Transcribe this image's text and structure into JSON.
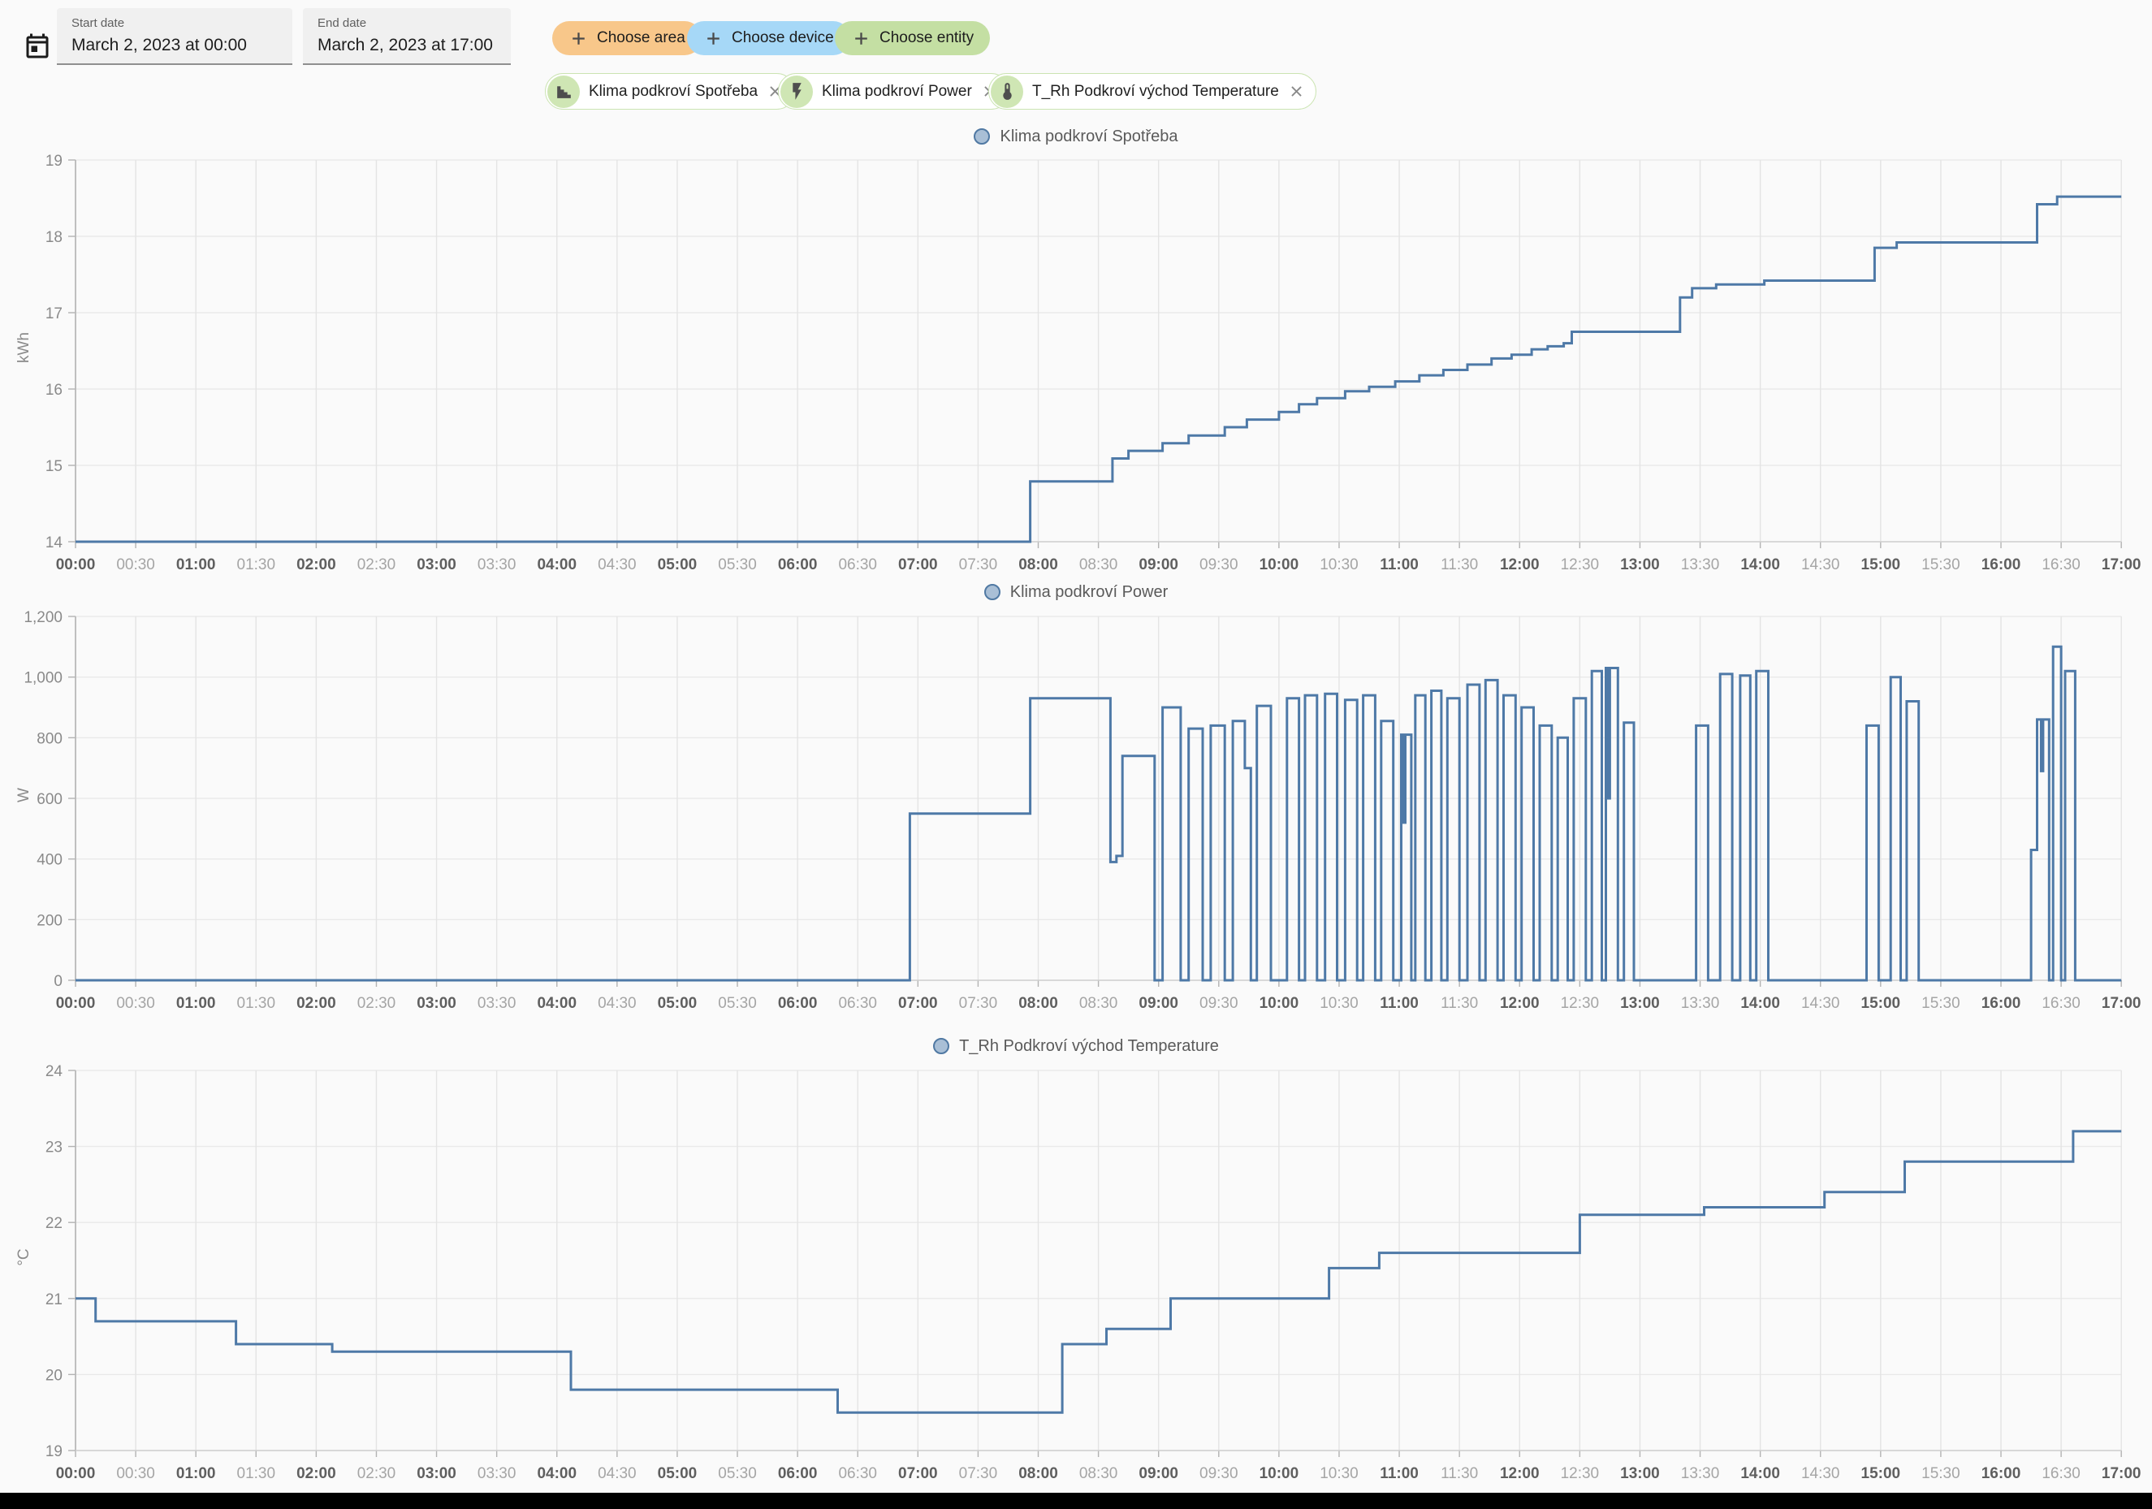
{
  "toolbar": {
    "start_date": {
      "label": "Start date",
      "value": "March 2, 2023 at 00:00"
    },
    "end_date": {
      "label": "End date",
      "value": "March 2, 2023 at 17:00"
    },
    "buttons": [
      {
        "label": "Choose area",
        "icon": "plus-icon",
        "color": "#f8c78a"
      },
      {
        "label": "Choose device",
        "icon": "plus-icon",
        "color": "#a6d8f7"
      },
      {
        "label": "Choose entity",
        "icon": "plus-icon",
        "color": "#c4dfa3"
      }
    ],
    "chips": [
      {
        "icon": "chart-icon",
        "label": "Klima podkroví Spotřeba",
        "close_icon": "close-icon"
      },
      {
        "icon": "flash-icon",
        "label": "Klima podkroví Power",
        "close_icon": "close-icon"
      },
      {
        "icon": "thermometer-icon",
        "label": "T_Rh Podkroví východ Temperature",
        "close_icon": "close-icon"
      }
    ]
  },
  "x_ticks": [
    "00:00",
    "00:30",
    "01:00",
    "01:30",
    "02:00",
    "02:30",
    "03:00",
    "03:30",
    "04:00",
    "04:30",
    "05:00",
    "05:30",
    "06:00",
    "06:30",
    "07:00",
    "07:30",
    "08:00",
    "08:30",
    "09:00",
    "09:30",
    "10:00",
    "10:30",
    "11:00",
    "11:30",
    "12:00",
    "12:30",
    "13:00",
    "13:30",
    "14:00",
    "14:30",
    "15:00",
    "15:30",
    "16:00",
    "16:30",
    "17:00"
  ],
  "chart_data": [
    {
      "type": "line",
      "legend": "Klima podkroví Spotřeba",
      "ylabel": "kWh",
      "ylim": [
        14,
        19
      ],
      "y_tick_values": [
        14,
        15,
        16,
        17,
        18,
        19
      ],
      "y_tick_labels": [
        "14",
        "15",
        "16",
        "17",
        "18",
        "19"
      ],
      "x_range_minutes": [
        0,
        1020
      ],
      "grid": true,
      "legend_position": "top-center",
      "series_step_points": [
        [
          0,
          14
        ],
        [
          476,
          14.79
        ],
        [
          517,
          15.09
        ],
        [
          525,
          15.19
        ],
        [
          542,
          15.29
        ],
        [
          555,
          15.39
        ],
        [
          573,
          15.5
        ],
        [
          584,
          15.6
        ],
        [
          600,
          15.7
        ],
        [
          610,
          15.8
        ],
        [
          619,
          15.88
        ],
        [
          633,
          15.97
        ],
        [
          645,
          16.03
        ],
        [
          658,
          16.1
        ],
        [
          670,
          16.18
        ],
        [
          682,
          16.25
        ],
        [
          694,
          16.32
        ],
        [
          706,
          16.4
        ],
        [
          716,
          16.45
        ],
        [
          726,
          16.52
        ],
        [
          734,
          16.56
        ],
        [
          742,
          16.6
        ],
        [
          746,
          16.75
        ],
        [
          800,
          17.2
        ],
        [
          806,
          17.32
        ],
        [
          818,
          17.37
        ],
        [
          842,
          17.42
        ],
        [
          897,
          17.85
        ],
        [
          908,
          17.92
        ],
        [
          978,
          18.42
        ],
        [
          988,
          18.52
        ],
        [
          1020,
          18.52
        ]
      ]
    },
    {
      "type": "line",
      "legend": "Klima podkroví Power",
      "ylabel": "W",
      "ylim": [
        0,
        1200
      ],
      "y_tick_values": [
        0,
        200,
        400,
        600,
        800,
        1000,
        1200
      ],
      "y_tick_labels": [
        "0",
        "200",
        "400",
        "600",
        "800",
        "1,000",
        "1,200"
      ],
      "x_range_minutes": [
        0,
        1020
      ],
      "grid": true,
      "legend_position": "top-center",
      "series_step_points": [
        [
          0,
          0
        ],
        [
          416,
          550
        ],
        [
          476,
          930
        ],
        [
          516,
          390
        ],
        [
          519,
          410
        ],
        [
          522,
          740
        ],
        [
          538,
          0
        ],
        [
          542,
          900
        ],
        [
          551,
          0
        ],
        [
          555,
          830
        ],
        [
          562,
          0
        ],
        [
          566,
          840
        ],
        [
          573,
          0
        ],
        [
          577,
          855
        ],
        [
          583,
          700
        ],
        [
          586,
          0
        ],
        [
          589,
          905
        ],
        [
          596,
          0
        ],
        [
          604,
          930
        ],
        [
          610,
          0
        ],
        [
          613,
          940
        ],
        [
          619,
          0
        ],
        [
          623,
          945
        ],
        [
          629,
          0
        ],
        [
          633,
          925
        ],
        [
          639,
          0
        ],
        [
          642,
          940
        ],
        [
          648,
          0
        ],
        [
          651,
          855
        ],
        [
          657,
          0
        ],
        [
          661,
          810
        ],
        [
          662,
          520
        ],
        [
          663,
          810
        ],
        [
          666,
          0
        ],
        [
          668,
          940
        ],
        [
          673,
          0
        ],
        [
          676,
          955
        ],
        [
          681,
          0
        ],
        [
          684,
          930
        ],
        [
          690,
          0
        ],
        [
          694,
          975
        ],
        [
          700,
          0
        ],
        [
          703,
          990
        ],
        [
          709,
          0
        ],
        [
          712,
          940
        ],
        [
          718,
          0
        ],
        [
          721,
          900
        ],
        [
          727,
          0
        ],
        [
          730,
          840
        ],
        [
          736,
          0
        ],
        [
          739,
          800
        ],
        [
          744,
          0
        ],
        [
          747,
          930
        ],
        [
          753,
          0
        ],
        [
          756,
          1020
        ],
        [
          761,
          0
        ],
        [
          763,
          1030
        ],
        [
          764,
          600
        ],
        [
          765,
          1030
        ],
        [
          769,
          0
        ],
        [
          772,
          850
        ],
        [
          777,
          0
        ],
        [
          808,
          840
        ],
        [
          814,
          0
        ],
        [
          820,
          1010
        ],
        [
          826,
          0
        ],
        [
          830,
          1005
        ],
        [
          835,
          0
        ],
        [
          838,
          1020
        ],
        [
          844,
          0
        ],
        [
          893,
          840
        ],
        [
          899,
          0
        ],
        [
          905,
          1000
        ],
        [
          910,
          0
        ],
        [
          913,
          920
        ],
        [
          919,
          0
        ],
        [
          975,
          430
        ],
        [
          978,
          860
        ],
        [
          980,
          690
        ],
        [
          981,
          860
        ],
        [
          984,
          0
        ],
        [
          986,
          1100
        ],
        [
          990,
          0
        ],
        [
          992,
          1020
        ],
        [
          997,
          0
        ],
        [
          1020,
          0
        ]
      ]
    },
    {
      "type": "line",
      "legend": "T_Rh Podkroví východ Temperature",
      "ylabel": "°C",
      "ylim": [
        19,
        24
      ],
      "y_tick_values": [
        19,
        20,
        21,
        22,
        23,
        24
      ],
      "y_tick_labels": [
        "19",
        "20",
        "21",
        "22",
        "23",
        "24"
      ],
      "x_range_minutes": [
        0,
        1020
      ],
      "grid": true,
      "legend_position": "top-center",
      "series_step_points": [
        [
          0,
          21
        ],
        [
          10,
          20.7
        ],
        [
          80,
          20.4
        ],
        [
          128,
          20.3
        ],
        [
          247,
          19.8
        ],
        [
          380,
          19.5
        ],
        [
          492,
          20.4
        ],
        [
          514,
          20.6
        ],
        [
          546,
          21
        ],
        [
          625,
          21.4
        ],
        [
          650,
          21.6
        ],
        [
          750,
          22.1
        ],
        [
          812,
          22.2
        ],
        [
          872,
          22.4
        ],
        [
          912,
          22.8
        ],
        [
          996,
          23.2
        ],
        [
          1020,
          23.2
        ]
      ]
    }
  ],
  "colors": {
    "line": "#4e79a7",
    "legend_dot_fill": "#a9bfd6",
    "legend_dot_border": "#5079a3",
    "button_area": "#f8c78a",
    "button_device": "#a6d8f7",
    "button_entity": "#c4dfa3",
    "chip_border": "#cbe4b2",
    "chip_avatar": "#cfe6b4",
    "background": "#fafafa"
  }
}
